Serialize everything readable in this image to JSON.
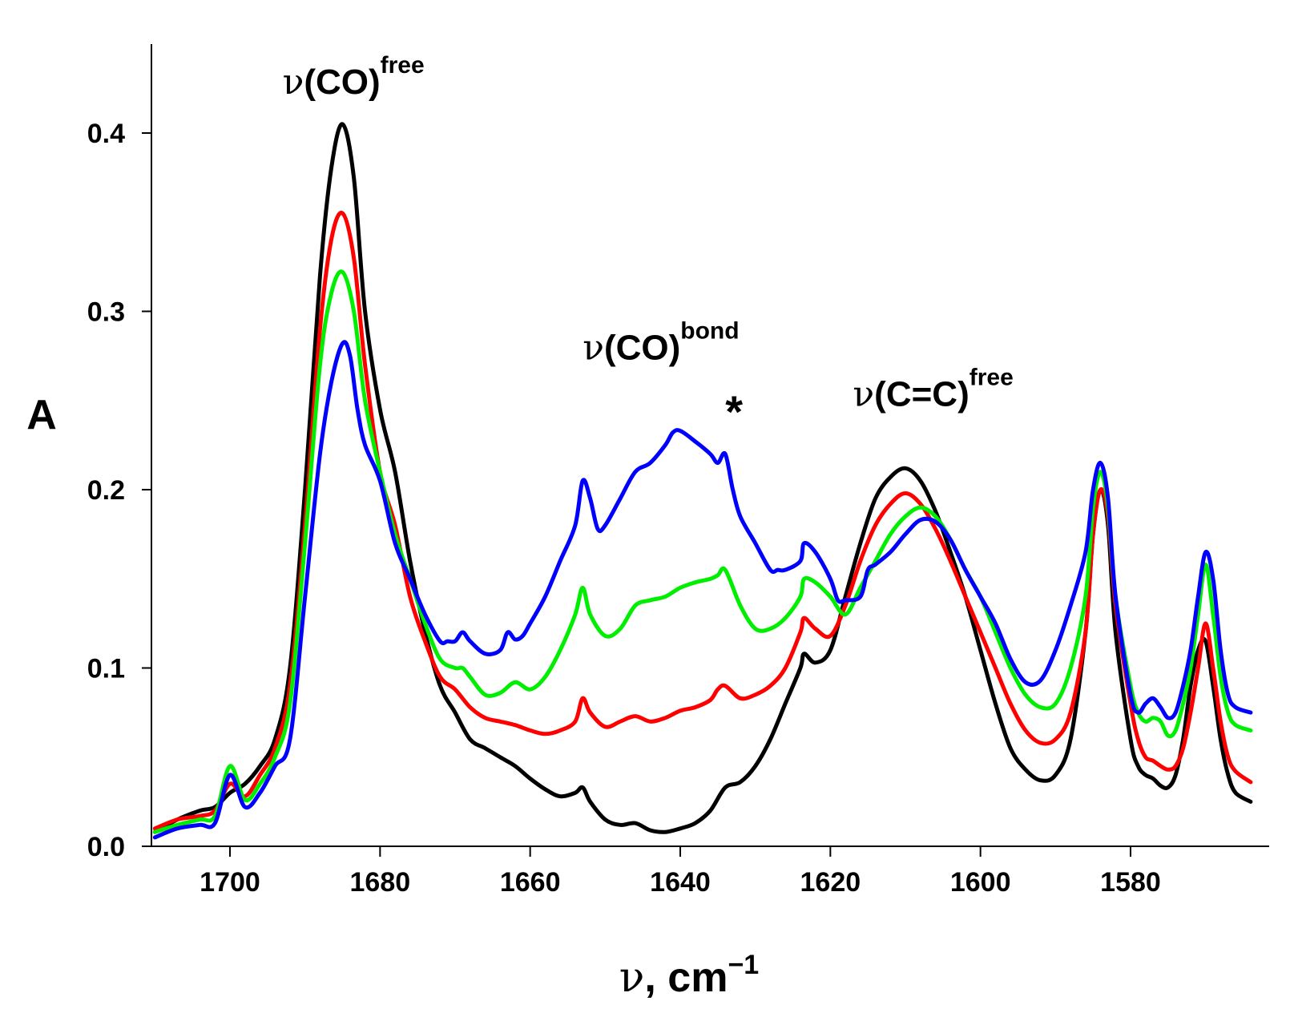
{
  "chart_data": {
    "type": "line",
    "title": "",
    "xlabel": {
      "symbol": "ν",
      "text": ", cm",
      "exponent": "−1"
    },
    "ylabel": "A",
    "xlim": [
      1710,
      1564
    ],
    "ylim": [
      0,
      0.45
    ],
    "x_reversed": true,
    "x_ticks": [
      1700,
      1680,
      1660,
      1640,
      1620,
      1600,
      1580
    ],
    "x_tick_labels": [
      "1700",
      "1680",
      "1660",
      "1640",
      "1620",
      "1600",
      "1580"
    ],
    "y_ticks": [
      0.0,
      0.1,
      0.2,
      0.3,
      0.4
    ],
    "y_tick_labels": [
      "0.0",
      "0.1",
      "0.2",
      "0.3",
      "0.4"
    ],
    "grid": false,
    "annotations": [
      {
        "symbol": "ν",
        "text": "(CO)",
        "sup": "free",
        "x": 1693,
        "y": 0.422
      },
      {
        "symbol": "ν",
        "text": "(CO)",
        "sup": "bond",
        "x": 1653,
        "y": 0.273
      },
      {
        "symbol": "",
        "text": "*",
        "sup": "",
        "x": 1634,
        "y": 0.235
      },
      {
        "symbol": "ν",
        "text": "(C=C)",
        "sup": "free",
        "x": 1617,
        "y": 0.247
      }
    ],
    "series": [
      {
        "name": "black",
        "color": "#000000",
        "x": [
          1710,
          1707,
          1704,
          1702,
          1700,
          1698,
          1696,
          1694,
          1692,
          1690,
          1688,
          1686.5,
          1685,
          1683.5,
          1682,
          1680,
          1678,
          1676,
          1674,
          1672,
          1670,
          1668,
          1666,
          1664,
          1662,
          1660,
          1658,
          1656,
          1654,
          1653,
          1652,
          1650,
          1648,
          1646,
          1644,
          1642,
          1640,
          1638,
          1636,
          1634,
          1632,
          1630,
          1628,
          1626,
          1624,
          1623.5,
          1622,
          1620,
          1618,
          1616,
          1614,
          1612,
          1610,
          1608,
          1606,
          1604,
          1602,
          1600,
          1598,
          1596,
          1594,
          1592,
          1590,
          1588,
          1586,
          1585,
          1584,
          1583,
          1582,
          1580,
          1579,
          1578,
          1577,
          1576,
          1575,
          1574,
          1573,
          1572,
          1571,
          1570,
          1569,
          1568,
          1567,
          1566,
          1564
        ],
        "y": [
          0.008,
          0.015,
          0.02,
          0.022,
          0.03,
          0.035,
          0.045,
          0.06,
          0.1,
          0.2,
          0.32,
          0.38,
          0.405,
          0.375,
          0.3,
          0.245,
          0.21,
          0.16,
          0.12,
          0.09,
          0.075,
          0.06,
          0.055,
          0.05,
          0.045,
          0.038,
          0.032,
          0.028,
          0.03,
          0.033,
          0.025,
          0.015,
          0.012,
          0.013,
          0.009,
          0.008,
          0.01,
          0.013,
          0.02,
          0.033,
          0.036,
          0.045,
          0.06,
          0.08,
          0.1,
          0.108,
          0.103,
          0.11,
          0.14,
          0.17,
          0.195,
          0.207,
          0.212,
          0.205,
          0.188,
          0.165,
          0.14,
          0.11,
          0.08,
          0.055,
          0.043,
          0.037,
          0.04,
          0.06,
          0.12,
          0.175,
          0.2,
          0.18,
          0.12,
          0.06,
          0.045,
          0.04,
          0.038,
          0.034,
          0.033,
          0.04,
          0.06,
          0.09,
          0.11,
          0.115,
          0.09,
          0.06,
          0.04,
          0.03,
          0.025
        ]
      },
      {
        "name": "red",
        "color": "#ff0000",
        "x": [
          1710,
          1707,
          1704,
          1702,
          1700,
          1698,
          1696,
          1694,
          1692,
          1690,
          1688,
          1686.5,
          1685,
          1683.5,
          1682,
          1680,
          1678,
          1676,
          1674,
          1672,
          1670,
          1668,
          1666,
          1664,
          1662,
          1660,
          1658,
          1656,
          1654,
          1653,
          1652,
          1650,
          1648,
          1646,
          1644,
          1642,
          1640,
          1638,
          1636,
          1635,
          1634,
          1632,
          1630,
          1628,
          1626,
          1624,
          1623.5,
          1622,
          1620,
          1618,
          1616,
          1614,
          1612,
          1610,
          1608,
          1606,
          1604,
          1602,
          1600,
          1598,
          1596,
          1594,
          1592,
          1590,
          1588,
          1586,
          1585,
          1584,
          1583,
          1582,
          1580,
          1579,
          1578,
          1577,
          1576,
          1575,
          1574,
          1573,
          1572,
          1571,
          1570,
          1569,
          1568,
          1567,
          1566,
          1564
        ],
        "y": [
          0.01,
          0.015,
          0.017,
          0.02,
          0.035,
          0.028,
          0.04,
          0.055,
          0.09,
          0.18,
          0.29,
          0.34,
          0.355,
          0.33,
          0.27,
          0.21,
          0.18,
          0.14,
          0.115,
          0.095,
          0.088,
          0.078,
          0.072,
          0.07,
          0.068,
          0.065,
          0.063,
          0.065,
          0.07,
          0.083,
          0.075,
          0.067,
          0.07,
          0.073,
          0.07,
          0.072,
          0.076,
          0.078,
          0.082,
          0.088,
          0.09,
          0.083,
          0.085,
          0.09,
          0.1,
          0.12,
          0.128,
          0.122,
          0.118,
          0.135,
          0.16,
          0.18,
          0.192,
          0.198,
          0.192,
          0.178,
          0.16,
          0.14,
          0.12,
          0.1,
          0.08,
          0.065,
          0.058,
          0.06,
          0.075,
          0.12,
          0.175,
          0.2,
          0.185,
          0.135,
          0.08,
          0.06,
          0.05,
          0.048,
          0.045,
          0.043,
          0.045,
          0.055,
          0.075,
          0.1,
          0.125,
          0.1,
          0.07,
          0.05,
          0.042,
          0.036
        ]
      },
      {
        "name": "green",
        "color": "#00ee00",
        "x": [
          1710,
          1707,
          1704,
          1702,
          1700,
          1698,
          1696,
          1694,
          1692,
          1690,
          1688,
          1686.5,
          1685,
          1683.5,
          1682,
          1680,
          1678,
          1676,
          1674,
          1672,
          1670,
          1669,
          1668,
          1666,
          1664,
          1662,
          1660,
          1658,
          1656,
          1654,
          1653,
          1652,
          1650,
          1648,
          1646,
          1644,
          1642,
          1640,
          1638,
          1636,
          1635,
          1634,
          1632,
          1630,
          1628,
          1626,
          1624,
          1623.5,
          1622,
          1620,
          1618,
          1616,
          1614,
          1612,
          1610,
          1608,
          1606,
          1604,
          1602,
          1600,
          1598,
          1596,
          1594,
          1592,
          1590,
          1588,
          1586,
          1585,
          1584,
          1583,
          1582,
          1580,
          1579,
          1578,
          1577,
          1576,
          1575,
          1574,
          1573,
          1572,
          1571,
          1570,
          1569,
          1568,
          1567,
          1566,
          1564
        ],
        "y": [
          0.008,
          0.012,
          0.015,
          0.017,
          0.045,
          0.026,
          0.035,
          0.05,
          0.08,
          0.17,
          0.27,
          0.31,
          0.322,
          0.3,
          0.25,
          0.21,
          0.175,
          0.15,
          0.125,
          0.105,
          0.1,
          0.1,
          0.095,
          0.085,
          0.086,
          0.092,
          0.088,
          0.095,
          0.11,
          0.13,
          0.145,
          0.13,
          0.118,
          0.122,
          0.135,
          0.138,
          0.14,
          0.145,
          0.148,
          0.15,
          0.152,
          0.155,
          0.135,
          0.122,
          0.122,
          0.128,
          0.14,
          0.15,
          0.148,
          0.14,
          0.13,
          0.145,
          0.16,
          0.175,
          0.185,
          0.19,
          0.185,
          0.172,
          0.155,
          0.14,
          0.12,
          0.1,
          0.085,
          0.078,
          0.08,
          0.1,
          0.14,
          0.19,
          0.21,
          0.19,
          0.14,
          0.09,
          0.075,
          0.07,
          0.072,
          0.07,
          0.062,
          0.065,
          0.08,
          0.1,
          0.13,
          0.158,
          0.13,
          0.095,
          0.075,
          0.068,
          0.065
        ]
      },
      {
        "name": "blue",
        "color": "#0000ff",
        "x": [
          1710,
          1707,
          1704,
          1702,
          1700,
          1698,
          1696,
          1694,
          1692,
          1690,
          1688,
          1686.5,
          1685,
          1684,
          1683,
          1682,
          1680,
          1678,
          1676,
          1674,
          1672,
          1671,
          1670,
          1669,
          1668,
          1666,
          1664,
          1663,
          1662,
          1661,
          1660,
          1658,
          1656,
          1654,
          1653,
          1652,
          1651,
          1650,
          1648,
          1646,
          1644,
          1642,
          1641,
          1640,
          1638,
          1636,
          1635,
          1634,
          1633,
          1632,
          1630,
          1628,
          1627,
          1626,
          1624,
          1623.5,
          1622,
          1620,
          1619,
          1618,
          1616,
          1615,
          1614,
          1612,
          1610,
          1608,
          1606,
          1604,
          1602,
          1600,
          1598,
          1596,
          1594,
          1592,
          1590,
          1588,
          1586,
          1585,
          1584,
          1583,
          1582,
          1580,
          1579,
          1578,
          1577,
          1576,
          1575,
          1574,
          1573,
          1572,
          1571,
          1570,
          1569,
          1568,
          1567,
          1566,
          1564
        ],
        "y": [
          0.005,
          0.01,
          0.012,
          0.013,
          0.04,
          0.022,
          0.03,
          0.045,
          0.06,
          0.14,
          0.22,
          0.26,
          0.282,
          0.275,
          0.245,
          0.225,
          0.205,
          0.17,
          0.15,
          0.13,
          0.115,
          0.115,
          0.115,
          0.12,
          0.115,
          0.108,
          0.11,
          0.12,
          0.116,
          0.118,
          0.125,
          0.14,
          0.16,
          0.18,
          0.205,
          0.195,
          0.178,
          0.18,
          0.195,
          0.21,
          0.215,
          0.225,
          0.232,
          0.233,
          0.227,
          0.22,
          0.215,
          0.22,
          0.2,
          0.185,
          0.17,
          0.155,
          0.155,
          0.155,
          0.16,
          0.17,
          0.165,
          0.15,
          0.138,
          0.138,
          0.14,
          0.155,
          0.158,
          0.165,
          0.175,
          0.183,
          0.182,
          0.172,
          0.155,
          0.14,
          0.125,
          0.105,
          0.092,
          0.093,
          0.11,
          0.135,
          0.165,
          0.2,
          0.215,
          0.195,
          0.14,
          0.085,
          0.075,
          0.08,
          0.083,
          0.078,
          0.072,
          0.075,
          0.09,
          0.11,
          0.14,
          0.165,
          0.15,
          0.11,
          0.085,
          0.078,
          0.075
        ]
      }
    ]
  }
}
